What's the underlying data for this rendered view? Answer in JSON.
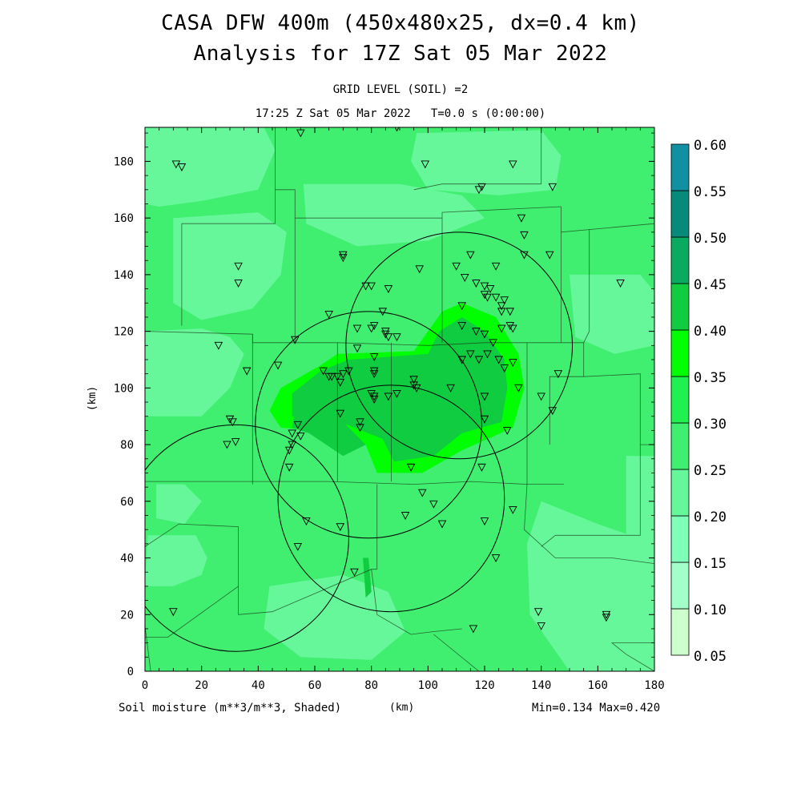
{
  "title_line1": "CASA DFW 400m (450x480x25, dx=0.4 km)",
  "title_line2": "Analysis for 17Z Sat 05 Mar 2022",
  "subtitle_line1": "GRID LEVEL (SOIL) =2",
  "subtitle_line2": "17:25 Z Sat 05 Mar 2022   T=0.0 s (0:00:00)",
  "footer": {
    "variable": "Soil moisture (m**3/m**3, Shaded)",
    "x_unit": "(km)",
    "minmax": "Min=0.134 Max=0.420"
  },
  "chart_data": {
    "type": "heatmap",
    "xlabel": "(km)",
    "ylabel": "(km)",
    "xlim": [
      0,
      180
    ],
    "ylim": [
      0,
      192
    ],
    "xticks": [
      0,
      20,
      40,
      60,
      80,
      100,
      120,
      140,
      160,
      180
    ],
    "yticks": [
      0,
      20,
      40,
      60,
      80,
      100,
      120,
      140,
      160,
      180
    ],
    "background_level": 0.25,
    "colorbar": {
      "levels": [
        0.05,
        0.1,
        0.15,
        0.2,
        0.25,
        0.3,
        0.35,
        0.4,
        0.45,
        0.5,
        0.55,
        0.6
      ],
      "labels": [
        "0.05",
        "0.10",
        "0.15",
        "0.20",
        "0.25",
        "0.30",
        "0.35",
        "0.40",
        "0.45",
        "0.50",
        "0.55",
        "0.60"
      ],
      "colors": [
        "#ccffcc",
        "#a3ffc8",
        "#80ffb8",
        "#66f79a",
        "#40ee70",
        "#20f050",
        "#00ff00",
        "#10cc40",
        "#0aaa60",
        "#088a7a",
        "#1090a0",
        "#1060f0"
      ]
    },
    "regions": [
      {
        "level": 0.2,
        "polygon": [
          [
            0,
            192
          ],
          [
            42,
            192
          ],
          [
            46,
            184
          ],
          [
            40,
            170
          ],
          [
            20,
            166
          ],
          [
            5,
            164
          ],
          [
            0,
            165
          ]
        ]
      },
      {
        "level": 0.2,
        "polygon": [
          [
            0,
            120
          ],
          [
            20,
            121
          ],
          [
            30,
            118
          ],
          [
            35,
            112
          ],
          [
            30,
            100
          ],
          [
            20,
            90
          ],
          [
            0,
            90
          ]
        ]
      },
      {
        "level": 0.2,
        "polygon": [
          [
            10,
            160
          ],
          [
            40,
            162
          ],
          [
            50,
            155
          ],
          [
            48,
            140
          ],
          [
            38,
            128
          ],
          [
            20,
            124
          ],
          [
            10,
            130
          ]
        ]
      },
      {
        "level": 0.2,
        "polygon": [
          [
            56,
            172
          ],
          [
            90,
            172
          ],
          [
            112,
            168
          ],
          [
            120,
            160
          ],
          [
            100,
            152
          ],
          [
            75,
            150
          ],
          [
            57,
            158
          ]
        ]
      },
      {
        "level": 0.2,
        "polygon": [
          [
            96,
            190
          ],
          [
            140,
            191
          ],
          [
            147,
            182
          ],
          [
            145,
            170
          ],
          [
            125,
            168
          ],
          [
            100,
            170
          ],
          [
            94,
            180
          ]
        ]
      },
      {
        "level": 0.2,
        "polygon": [
          [
            150,
            140
          ],
          [
            175,
            140
          ],
          [
            180,
            134
          ],
          [
            180,
            115
          ],
          [
            166,
            112
          ],
          [
            152,
            118
          ]
        ]
      },
      {
        "level": 0.2,
        "polygon": [
          [
            140,
            60
          ],
          [
            160,
            52
          ],
          [
            180,
            45
          ],
          [
            180,
            0
          ],
          [
            150,
            0
          ],
          [
            136,
            20
          ],
          [
            135,
            45
          ]
        ]
      },
      {
        "level": 0.2,
        "polygon": [
          [
            1,
            48
          ],
          [
            18,
            48
          ],
          [
            22,
            40
          ],
          [
            20,
            34
          ],
          [
            10,
            30
          ],
          [
            0,
            30
          ]
        ]
      },
      {
        "level": 0.2,
        "polygon": [
          [
            44,
            30
          ],
          [
            70,
            34
          ],
          [
            86,
            28
          ],
          [
            92,
            14
          ],
          [
            80,
            4
          ],
          [
            55,
            5
          ],
          [
            42,
            15
          ]
        ]
      },
      {
        "level": 0.2,
        "polygon": [
          [
            4,
            66
          ],
          [
            14,
            66
          ],
          [
            20,
            60
          ],
          [
            14,
            52
          ],
          [
            4,
            54
          ]
        ]
      },
      {
        "level": 0.2,
        "polygon": [
          [
            170,
            76
          ],
          [
            180,
            76
          ],
          [
            180,
            30
          ],
          [
            170,
            40
          ]
        ]
      },
      {
        "level": 0.35,
        "polygon": [
          [
            48,
            100
          ],
          [
            62,
            108
          ],
          [
            68,
            112
          ],
          [
            95,
            113
          ],
          [
            100,
            120
          ],
          [
            105,
            127
          ],
          [
            112,
            130
          ],
          [
            124,
            125
          ],
          [
            132,
            112
          ],
          [
            134,
            100
          ],
          [
            130,
            86
          ],
          [
            112,
            78
          ],
          [
            98,
            70
          ],
          [
            82,
            70
          ],
          [
            78,
            80
          ],
          [
            60,
            85
          ],
          [
            48,
            86
          ],
          [
            44,
            92
          ]
        ]
      },
      {
        "level": 0.4,
        "polygon": [
          [
            52,
            98
          ],
          [
            62,
            106
          ],
          [
            72,
            110
          ],
          [
            100,
            112
          ],
          [
            104,
            120
          ],
          [
            112,
            125
          ],
          [
            120,
            120
          ],
          [
            127,
            110
          ],
          [
            128,
            100
          ],
          [
            126,
            88
          ],
          [
            112,
            84
          ],
          [
            102,
            76
          ],
          [
            88,
            74
          ],
          [
            84,
            82
          ],
          [
            64,
            90
          ],
          [
            52,
            90
          ]
        ]
      },
      {
        "level": 0.4,
        "polygon": [
          [
            77,
            40
          ],
          [
            78,
            26
          ],
          [
            80,
            28
          ],
          [
            79,
            40
          ]
        ]
      },
      {
        "level": 0.4,
        "polygon": [
          [
            53,
            92
          ],
          [
            68,
            90
          ],
          [
            74,
            84
          ],
          [
            78,
            80
          ],
          [
            70,
            76
          ],
          [
            58,
            84
          ],
          [
            52,
            86
          ]
        ]
      }
    ],
    "county_lines": [
      [
        [
          0,
          120
        ],
        [
          38,
          119
        ],
        [
          38,
          116
        ],
        [
          68,
          116
        ],
        [
          100,
          115
        ],
        [
          120,
          116
        ],
        [
          155,
          116
        ]
      ],
      [
        [
          0,
          67
        ],
        [
          65,
          67
        ],
        [
          95,
          66
        ],
        [
          115,
          67
        ],
        [
          135,
          66
        ],
        [
          148,
          66
        ]
      ],
      [
        [
          38,
          119
        ],
        [
          38,
          66
        ]
      ],
      [
        [
          68,
          116
        ],
        [
          68,
          67
        ]
      ],
      [
        [
          87,
          116
        ],
        [
          87,
          67
        ]
      ],
      [
        [
          155,
          116
        ],
        [
          155,
          104
        ],
        [
          143,
          104
        ],
        [
          143,
          80
        ]
      ],
      [
        [
          135,
          116
        ],
        [
          135,
          66
        ],
        [
          134,
          50
        ],
        [
          145,
          40
        ],
        [
          165,
          40
        ],
        [
          180,
          38
        ]
      ],
      [
        [
          155,
          104
        ],
        [
          175,
          105
        ],
        [
          175,
          80
        ],
        [
          180,
          80
        ]
      ],
      [
        [
          175,
          80
        ],
        [
          175,
          48
        ],
        [
          145,
          48
        ],
        [
          140,
          44
        ]
      ],
      [
        [
          0,
          44
        ],
        [
          12,
          52
        ],
        [
          33,
          51
        ],
        [
          33,
          30
        ]
      ],
      [
        [
          33,
          30
        ],
        [
          8,
          12
        ],
        [
          0,
          12
        ]
      ],
      [
        [
          33,
          30
        ],
        [
          33,
          20
        ],
        [
          45,
          21
        ],
        [
          80,
          36
        ],
        [
          82,
          36
        ]
      ],
      [
        [
          80,
          36
        ],
        [
          82,
          20
        ],
        [
          94,
          13
        ],
        [
          102,
          14
        ],
        [
          112,
          15
        ]
      ],
      [
        [
          82,
          66
        ],
        [
          82,
          36
        ]
      ],
      [
        [
          2,
          0
        ],
        [
          0,
          16
        ]
      ],
      [
        [
          180,
          0
        ],
        [
          170,
          6
        ],
        [
          165,
          10
        ],
        [
          180,
          10
        ]
      ],
      [
        [
          102,
          13
        ],
        [
          118,
          0
        ]
      ],
      [
        [
          13,
          158
        ],
        [
          13,
          122
        ]
      ],
      [
        [
          13,
          158
        ],
        [
          46,
          158
        ],
        [
          46,
          170
        ],
        [
          53,
          170
        ],
        [
          53,
          160
        ],
        [
          105,
          160
        ],
        [
          105,
          162
        ],
        [
          147,
          164
        ]
      ],
      [
        [
          46,
          170
        ],
        [
          46,
          192
        ]
      ],
      [
        [
          95,
          170
        ],
        [
          105,
          172
        ],
        [
          140,
          172
        ],
        [
          140,
          192
        ]
      ],
      [
        [
          147,
          164
        ],
        [
          147,
          155
        ],
        [
          180,
          158
        ]
      ],
      [
        [
          105,
          160
        ],
        [
          105,
          116
        ]
      ],
      [
        [
          147,
          155
        ],
        [
          147,
          116
        ]
      ],
      [
        [
          53,
          160
        ],
        [
          53,
          116
        ]
      ],
      [
        [
          155,
          116
        ],
        [
          157,
          120
        ],
        [
          157,
          130
        ],
        [
          157,
          156
        ]
      ]
    ],
    "radar_rings": [
      {
        "cx": 32,
        "cy": 47,
        "r": 40
      },
      {
        "cx": 79,
        "cy": 87,
        "r": 40
      },
      {
        "cx": 87,
        "cy": 61,
        "r": 40
      },
      {
        "cx": 111,
        "cy": 115,
        "r": 40
      }
    ],
    "station_markers": [
      [
        11,
        179
      ],
      [
        13,
        178
      ],
      [
        55,
        190
      ],
      [
        89,
        192
      ],
      [
        99,
        179
      ],
      [
        118,
        170
      ],
      [
        119,
        171
      ],
      [
        130,
        179
      ],
      [
        144,
        171
      ],
      [
        133,
        160
      ],
      [
        134,
        154
      ],
      [
        134,
        147
      ],
      [
        143,
        147
      ],
      [
        124,
        143
      ],
      [
        115,
        147
      ],
      [
        110,
        143
      ],
      [
        97,
        142
      ],
      [
        70,
        147
      ],
      [
        70,
        146
      ],
      [
        33,
        143
      ],
      [
        33,
        137
      ],
      [
        168,
        137
      ],
      [
        117,
        137
      ],
      [
        120,
        136
      ],
      [
        122,
        135
      ],
      [
        121,
        132
      ],
      [
        124,
        132
      ],
      [
        127,
        131
      ],
      [
        126,
        129
      ],
      [
        129,
        127
      ],
      [
        112,
        129
      ],
      [
        113,
        139
      ],
      [
        120,
        133
      ],
      [
        126,
        127
      ],
      [
        80,
        136
      ],
      [
        78,
        136
      ],
      [
        86,
        135
      ],
      [
        84,
        127
      ],
      [
        65,
        126
      ],
      [
        75,
        121
      ],
      [
        80,
        121
      ],
      [
        81,
        122
      ],
      [
        85,
        120
      ],
      [
        86,
        118
      ],
      [
        85,
        119
      ],
      [
        89,
        118
      ],
      [
        129,
        122
      ],
      [
        130,
        121
      ],
      [
        126,
        121
      ],
      [
        112,
        122
      ],
      [
        117,
        120
      ],
      [
        120,
        119
      ],
      [
        123,
        116
      ],
      [
        121,
        112
      ],
      [
        115,
        112
      ],
      [
        112,
        110
      ],
      [
        118,
        110
      ],
      [
        125,
        110
      ],
      [
        127,
        107
      ],
      [
        130,
        109
      ],
      [
        53,
        117
      ],
      [
        26,
        115
      ],
      [
        36,
        106
      ],
      [
        47,
        108
      ],
      [
        63,
        106
      ],
      [
        65,
        104
      ],
      [
        66,
        104
      ],
      [
        68,
        104
      ],
      [
        70,
        105
      ],
      [
        72,
        106
      ],
      [
        69,
        102
      ],
      [
        75,
        114
      ],
      [
        81,
        111
      ],
      [
        81,
        106
      ],
      [
        81,
        105
      ],
      [
        95,
        103
      ],
      [
        96,
        100
      ],
      [
        95,
        101
      ],
      [
        108,
        100
      ],
      [
        89,
        98
      ],
      [
        86,
        97
      ],
      [
        81,
        97
      ],
      [
        80,
        98
      ],
      [
        81,
        96
      ],
      [
        120,
        97
      ],
      [
        132,
        100
      ],
      [
        140,
        97
      ],
      [
        144,
        92
      ],
      [
        146,
        105
      ],
      [
        69,
        91
      ],
      [
        76,
        88
      ],
      [
        76,
        86
      ],
      [
        54,
        87
      ],
      [
        52,
        84
      ],
      [
        55,
        83
      ],
      [
        52,
        80
      ],
      [
        51,
        78
      ],
      [
        51,
        72
      ],
      [
        30,
        89
      ],
      [
        31,
        88
      ],
      [
        29,
        80
      ],
      [
        32,
        81
      ],
      [
        120,
        89
      ],
      [
        128,
        85
      ],
      [
        119,
        72
      ],
      [
        94,
        72
      ],
      [
        98,
        63
      ],
      [
        102,
        59
      ],
      [
        92,
        55
      ],
      [
        105,
        52
      ],
      [
        120,
        53
      ],
      [
        130,
        57
      ],
      [
        124,
        40
      ],
      [
        69,
        51
      ],
      [
        57,
        53
      ],
      [
        54,
        44
      ],
      [
        74,
        35
      ],
      [
        10,
        21
      ],
      [
        116,
        15
      ],
      [
        139,
        21
      ],
      [
        140,
        16
      ],
      [
        163,
        20
      ],
      [
        163,
        19
      ]
    ]
  }
}
